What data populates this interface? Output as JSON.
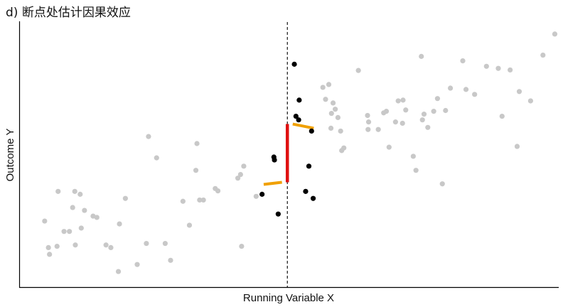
{
  "chart_data": {
    "type": "scatter",
    "title": "d) 断点处估计因果效应",
    "xlabel": "Running Variable X",
    "ylabel": "Outcome Y",
    "xlim": [
      0,
      100
    ],
    "ylim": [
      0,
      100
    ],
    "grid": false,
    "cutoff": 49.7,
    "series": [
      {
        "role": "background",
        "color": "#c8c8c8",
        "points": [
          [
            4.6,
            24.3
          ],
          [
            5.3,
            14.1
          ],
          [
            5.5,
            11.5
          ],
          [
            6.9,
            14.6
          ],
          [
            7.1,
            35.7
          ],
          [
            8.2,
            20.3
          ],
          [
            9.2,
            20.3
          ],
          [
            9.8,
            29.5
          ],
          [
            10.3,
            15.1
          ],
          [
            10.2,
            35.7
          ],
          [
            11.4,
            21.6
          ],
          [
            11.2,
            34.6
          ],
          [
            12.0,
            28.4
          ],
          [
            13.6,
            26.2
          ],
          [
            14.3,
            25.7
          ],
          [
            16.0,
            15.1
          ],
          [
            16.9,
            14.1
          ],
          [
            18.3,
            4.9
          ],
          [
            18.5,
            23.2
          ],
          [
            19.6,
            33.0
          ],
          [
            21.8,
            7.6
          ],
          [
            23.5,
            15.7
          ],
          [
            23.9,
            56.8
          ],
          [
            25.4,
            48.6
          ],
          [
            27.0,
            15.7
          ],
          [
            28.0,
            9.2
          ],
          [
            30.3,
            31.9
          ],
          [
            31.5,
            22.7
          ],
          [
            32.7,
            43.8
          ],
          [
            32.9,
            54.1
          ],
          [
            33.4,
            32.4
          ],
          [
            34.1,
            32.4
          ],
          [
            36.3,
            36.8
          ],
          [
            36.8,
            35.9
          ],
          [
            40.5,
            40.8
          ],
          [
            41.0,
            42.2
          ],
          [
            41.2,
            14.6
          ],
          [
            41.6,
            45.4
          ],
          [
            43.9,
            33.8
          ],
          [
            56.3,
            75.7
          ],
          [
            56.8,
            71.1
          ],
          [
            57.4,
            76.8
          ],
          [
            57.9,
            65.7
          ],
          [
            57.8,
            60.0
          ],
          [
            58.2,
            69.7
          ],
          [
            58.6,
            67.3
          ],
          [
            59.1,
            64.1
          ],
          [
            59.6,
            58.9
          ],
          [
            59.8,
            51.4
          ],
          [
            60.2,
            52.4
          ],
          [
            62.9,
            82.2
          ],
          [
            64.6,
            64.9
          ],
          [
            64.7,
            59.5
          ],
          [
            64.8,
            62.4
          ],
          [
            66.6,
            59.5
          ],
          [
            67.6,
            65.9
          ],
          [
            68.1,
            66.5
          ],
          [
            68.6,
            52.7
          ],
          [
            69.8,
            62.4
          ],
          [
            70.3,
            70.5
          ],
          [
            71.2,
            70.8
          ],
          [
            71.7,
            67.0
          ],
          [
            71.1,
            61.9
          ],
          [
            73.1,
            49.2
          ],
          [
            73.6,
            43.8
          ],
          [
            74.6,
            87.6
          ],
          [
            74.8,
            63.2
          ],
          [
            75.1,
            65.4
          ],
          [
            75.8,
            60.3
          ],
          [
            76.9,
            66.5
          ],
          [
            77.6,
            71.4
          ],
          [
            78.5,
            38.6
          ],
          [
            79.1,
            66.8
          ],
          [
            80.0,
            75.4
          ],
          [
            82.3,
            85.9
          ],
          [
            82.9,
            74.9
          ],
          [
            84.5,
            73.0
          ],
          [
            86.7,
            83.8
          ],
          [
            88.9,
            83.0
          ],
          [
            89.6,
            64.6
          ],
          [
            91.1,
            82.4
          ],
          [
            92.4,
            53.0
          ],
          [
            92.8,
            74.1
          ],
          [
            94.9,
            70.5
          ],
          [
            97.2,
            88.1
          ],
          [
            99.4,
            96.2
          ]
        ]
      },
      {
        "role": "near-cutoff",
        "color": "#000000",
        "points": [
          [
            45.0,
            34.6
          ],
          [
            47.2,
            48.9
          ],
          [
            47.3,
            47.8
          ],
          [
            48.0,
            27.0
          ],
          [
            51.0,
            84.6
          ],
          [
            51.3,
            64.6
          ],
          [
            51.8,
            63.2
          ],
          [
            51.9,
            70.8
          ],
          [
            53.1,
            35.7
          ],
          [
            53.7,
            45.4
          ],
          [
            54.2,
            58.9
          ],
          [
            54.5,
            33.0
          ]
        ]
      }
    ],
    "fits": [
      {
        "side": "left",
        "color": "#f0a000",
        "points": [
          [
            45.3,
            38.4
          ],
          [
            48.7,
            39.2
          ]
        ]
      },
      {
        "side": "right",
        "color": "#f0a000",
        "points": [
          [
            50.7,
            61.6
          ],
          [
            54.6,
            60.0
          ]
        ]
      }
    ],
    "effect_bar": {
      "color": "#e01010",
      "x": 49.7,
      "y_from": 39.2,
      "y_to": 61.6
    }
  }
}
